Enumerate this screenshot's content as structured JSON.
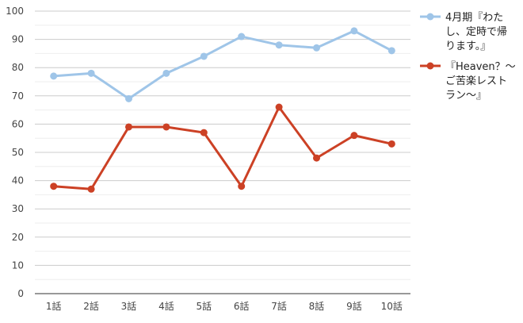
{
  "chart_data": {
    "type": "line",
    "title": "",
    "xlabel": "",
    "ylabel": "",
    "categories": [
      "1話",
      "2話",
      "3話",
      "4話",
      "5話",
      "6話",
      "7話",
      "8話",
      "9話",
      "10話"
    ],
    "ylim": [
      0,
      100
    ],
    "yticks": [
      0,
      10,
      20,
      30,
      40,
      50,
      60,
      70,
      80,
      90,
      100
    ],
    "grid": true,
    "legend_position": "right",
    "series": [
      {
        "name": "4月期『わたし、定時で帰ります。』",
        "legend_lines": [
          "4月期『わた",
          "し、定時で帰",
          "ります。』"
        ],
        "color": "#9fc5e8",
        "values": [
          77,
          78,
          69,
          78,
          84,
          91,
          88,
          87,
          93,
          86
        ]
      },
      {
        "name": "『Heaven？～ご苦楽レストラン～』",
        "legend_lines": [
          "『Heaven？～",
          "ご苦楽レスト",
          "ラン～』"
        ],
        "color": "#cc4125",
        "values": [
          38,
          37,
          59,
          59,
          57,
          38,
          66,
          48,
          56,
          53
        ]
      }
    ]
  }
}
